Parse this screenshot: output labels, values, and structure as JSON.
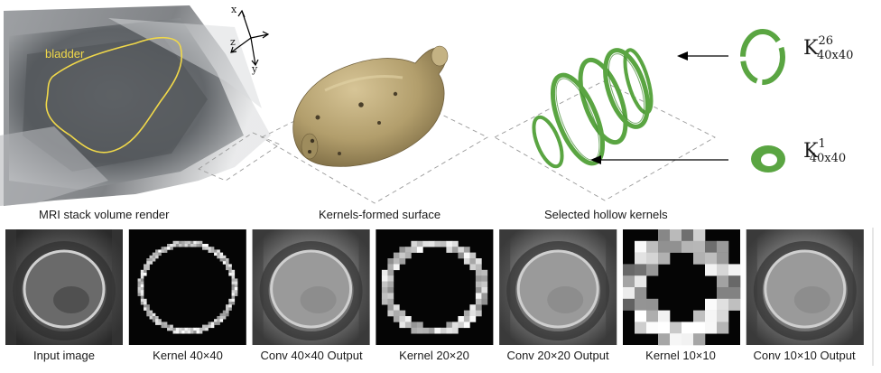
{
  "top": {
    "mri_caption": "MRI stack volume render",
    "surface_caption": "Kernels-formed surface",
    "kernels_caption": "Selected hollow kernels",
    "bladder_label": "bladder",
    "axes": {
      "x": "x",
      "y": "y",
      "z": "z"
    },
    "kernel_top": {
      "base": "K",
      "sup": "26",
      "sub": "40x40"
    },
    "kernel_bottom": {
      "base": "K",
      "sup": "1",
      "sub": "40x40"
    }
  },
  "bottom_panels": [
    {
      "caption": "Input image",
      "kind": "mri"
    },
    {
      "caption": "Kernel 40×40",
      "kind": "kernel",
      "grid": 40
    },
    {
      "caption": "Conv 40×40 Output",
      "kind": "conv"
    },
    {
      "caption": "Kernel 20×20",
      "kind": "kernel",
      "grid": 20
    },
    {
      "caption": "Conv 20×20 Output",
      "kind": "conv"
    },
    {
      "caption": "Kernel 10×10",
      "kind": "kernel",
      "grid": 10
    },
    {
      "caption": "Conv 10×10 Output",
      "kind": "conv"
    }
  ],
  "colors": {
    "bladder_outline": "#f0d84a",
    "surface": "#b5a273",
    "kernel_ring": "#5aa542",
    "kernel_bg": "#050505"
  }
}
